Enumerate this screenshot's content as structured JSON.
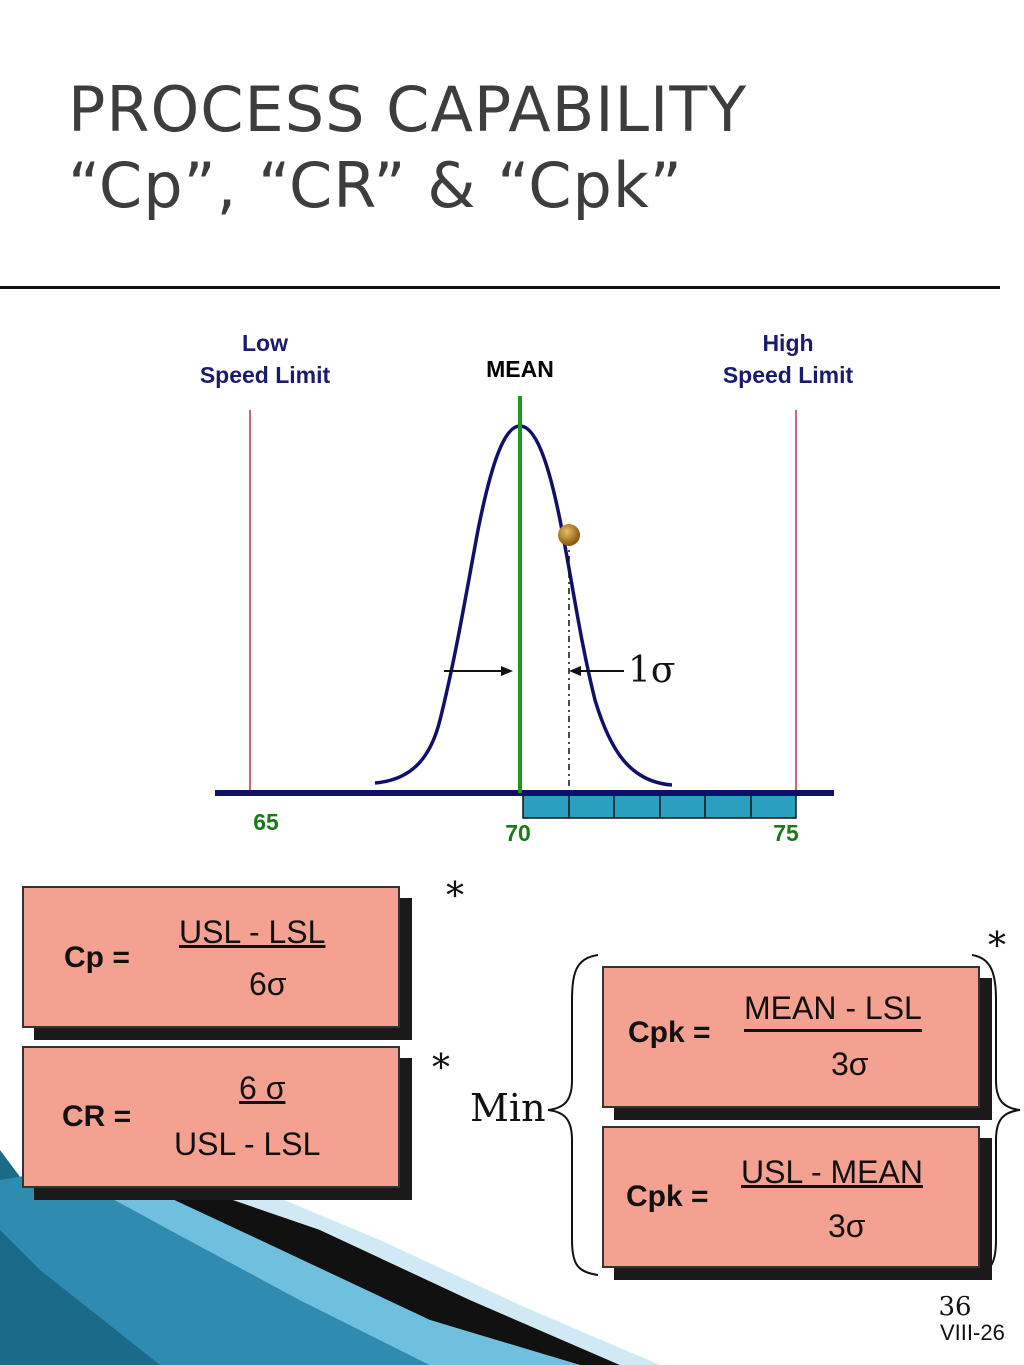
{
  "title": {
    "line1": "PROCESS CAPABILITY",
    "line2": "“Cp”, “CR” & “Cpk”"
  },
  "diagram": {
    "low_limit": {
      "line1": "Low",
      "line2": "Speed Limit"
    },
    "high_limit": {
      "line1": "High",
      "line2": "Speed Limit"
    },
    "mean_label": "MEAN",
    "sigma_label": "1σ",
    "axis_values": {
      "low": "65",
      "mean": "70",
      "high": "75"
    },
    "colors": {
      "curve": "#10106a",
      "mean_line": "#1a9a1a",
      "limit_lines": "#c0304a",
      "axis": "#10106a",
      "scale_cells": "#2aa0be",
      "values": "#1a7a1a"
    },
    "scale_cells": 6
  },
  "formulas": {
    "cp": {
      "lhs": "Cp =",
      "numerator": "USL - LSL",
      "denominator": "6σ"
    },
    "cr": {
      "lhs": "CR =",
      "numerator": "6 σ",
      "denominator": "USL - LSL"
    },
    "cpk_low": {
      "lhs": "Cpk =",
      "numerator": "MEAN - LSL",
      "denominator": "3σ"
    },
    "cpk_high": {
      "lhs": "Cpk =",
      "numerator": "USL - MEAN",
      "denominator": "3σ"
    },
    "min_label": "Min",
    "asterisk": "*",
    "box_color": "#f5a192"
  },
  "footer": {
    "page_number": "36",
    "slide_code": "VIII-26"
  }
}
